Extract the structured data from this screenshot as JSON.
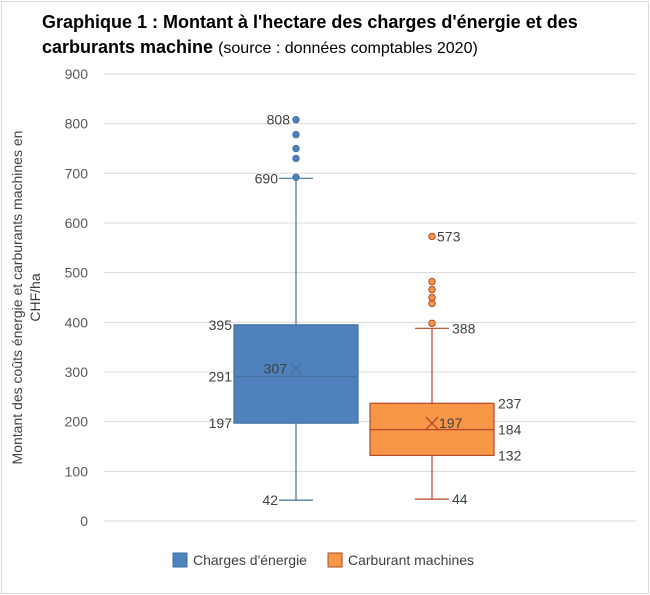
{
  "title": {
    "bold": "Graphique 1 : Montant à l'hectare des charges d'énergie et des carburants machine",
    "source": "(source : données comptables 2020)"
  },
  "chart_data": {
    "type": "boxplot",
    "ylabel": "Montant des coûts énergie et carburants machines en CHF/ha",
    "ylim": [
      0,
      900
    ],
    "yticks": [
      0,
      100,
      200,
      300,
      400,
      500,
      600,
      700,
      800,
      900
    ],
    "grid": true,
    "legend_position": "bottom",
    "series": [
      {
        "name": "Charges d'énergie",
        "color": "#4f81bd",
        "stroke": "#41719c",
        "min": 42,
        "q1": 197,
        "median": 291,
        "mean": 307,
        "q3": 395,
        "max_whisker": 690,
        "outliers": [
          692,
          730,
          750,
          778,
          808
        ],
        "labels": {
          "min": "42",
          "q1": "197",
          "median": "291",
          "mean": "307",
          "q3": "395",
          "max_whisker": "690",
          "max_outlier": "808"
        }
      },
      {
        "name": "Carburant machines",
        "color": "#f79646",
        "stroke": "#b7472a",
        "min": 44,
        "q1": 132,
        "median": 184,
        "mean": 197,
        "q3": 237,
        "max_whisker": 388,
        "outliers": [
          398,
          438,
          450,
          466,
          482,
          573
        ],
        "labels": {
          "min": "44",
          "q1": "132",
          "median": "184",
          "mean": "197",
          "q3": "237",
          "max_whisker": "388",
          "max_outlier": "573"
        }
      }
    ]
  }
}
